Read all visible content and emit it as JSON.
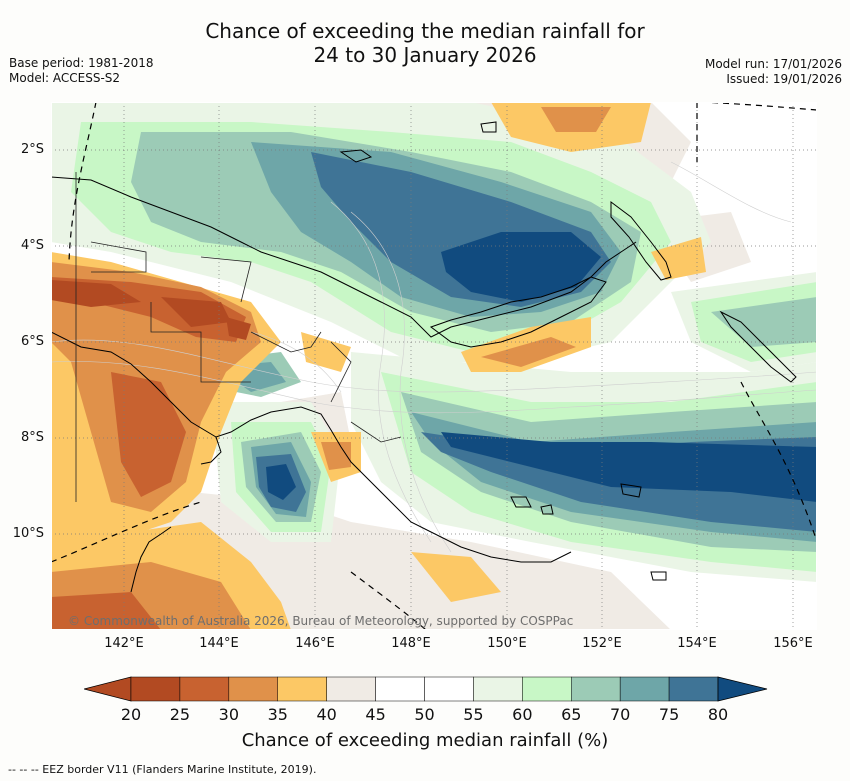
{
  "title": {
    "line1": "Chance of exceeding the median rainfall for",
    "line2": "24 to 30 January 2026"
  },
  "meta": {
    "base_period": "Base period: 1981-2018",
    "model": "Model: ACCESS-S2",
    "model_run": "Model run: 17/01/2026",
    "issued": "Issued: 19/01/2026"
  },
  "map": {
    "x_ticks": [
      "142°E",
      "144°E",
      "146°E",
      "148°E",
      "150°E",
      "152°E",
      "154°E",
      "156°E"
    ],
    "y_ticks": [
      "2°S",
      "4°S",
      "6°S",
      "8°S",
      "10°S"
    ],
    "copyright": "© Commonwealth of Australia 2026, Bureau of Meteorology, supported by COSPPac"
  },
  "colorbar": {
    "ticks": [
      "20",
      "25",
      "30",
      "35",
      "40",
      "45",
      "50",
      "55",
      "60",
      "65",
      "70",
      "75",
      "80"
    ],
    "colors": [
      "#b24a22",
      "#b24a22",
      "#c86230",
      "#e0914a",
      "#fcc865",
      "#f0ebe5",
      "#ffffff",
      "#ffffff",
      "#eaf5e6",
      "#c8f7c6",
      "#9ccbb6",
      "#6ea6a8",
      "#3f7496",
      "#114b7f"
    ],
    "label": "Chance of exceeding median rainfall (%)"
  },
  "legend": {
    "eez": "-- -- -- EEZ border V11 (Flanders Marine Institute, 2019)."
  }
}
